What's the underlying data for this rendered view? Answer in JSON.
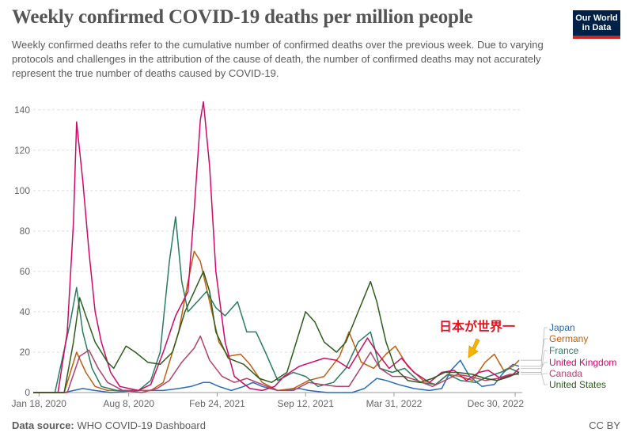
{
  "header": {
    "title": "Weekly confirmed COVID-19 deaths per million people",
    "subtitle": "Weekly confirmed deaths refer to the cumulative number of confirmed deaths over the previous week. Due to varying protocols and challenges in the attribution of the cause of death, the number of confirmed deaths may not accurately represent the true number of deaths caused by COVID-19.",
    "logo_line1": "Our World",
    "logo_line2": "in Data"
  },
  "footer": {
    "source_label": "Data source:",
    "source_value": "WHO COVID-19 Dashboard",
    "license": "CC BY"
  },
  "annotation": {
    "text": "日本が世界一",
    "color": "#e8121d",
    "arrow_color": "#f5b400"
  },
  "chart_data": {
    "type": "line",
    "title": "Weekly confirmed COVID-19 deaths per million people",
    "xlabel": "",
    "ylabel": "",
    "x_axis_type": "date",
    "xlim": [
      "2020-01-05",
      "2023-01-15"
    ],
    "ylim": [
      0,
      145
    ],
    "yticks": [
      0,
      20,
      40,
      60,
      80,
      100,
      120,
      140
    ],
    "xticks": [
      {
        "date": "2020-01-18",
        "label": "Jan 18, 2020"
      },
      {
        "date": "2020-08-08",
        "label": "Aug 8, 2020"
      },
      {
        "date": "2021-02-24",
        "label": "Feb 24, 2021"
      },
      {
        "date": "2021-09-12",
        "label": "Sep 12, 2021"
      },
      {
        "date": "2022-03-31",
        "label": "Mar 31, 2022"
      },
      {
        "date": "2022-12-30",
        "label": "Dec 30, 2022"
      }
    ],
    "grid": "horizontal dashed",
    "legend": "right (line-end labels)",
    "series": [
      {
        "name": "Japan",
        "color": "#286bbb",
        "points": [
          [
            "2020-01-05",
            0
          ],
          [
            "2020-03-15",
            0
          ],
          [
            "2020-04-26",
            2
          ],
          [
            "2020-05-24",
            1
          ],
          [
            "2020-06-28",
            0
          ],
          [
            "2020-08-30",
            1
          ],
          [
            "2020-10-25",
            1
          ],
          [
            "2020-11-29",
            2
          ],
          [
            "2020-12-27",
            3
          ],
          [
            "2021-01-24",
            5
          ],
          [
            "2021-02-07",
            5
          ],
          [
            "2021-02-28",
            3
          ],
          [
            "2021-03-28",
            1
          ],
          [
            "2021-04-25",
            3
          ],
          [
            "2021-05-16",
            5
          ],
          [
            "2021-06-06",
            3
          ],
          [
            "2021-07-11",
            1
          ],
          [
            "2021-08-29",
            2
          ],
          [
            "2021-09-19",
            1
          ],
          [
            "2021-10-31",
            0
          ],
          [
            "2021-12-26",
            0
          ],
          [
            "2022-01-23",
            2
          ],
          [
            "2022-02-20",
            7
          ],
          [
            "2022-03-13",
            6
          ],
          [
            "2022-04-10",
            4
          ],
          [
            "2022-05-15",
            2
          ],
          [
            "2022-06-19",
            1
          ],
          [
            "2022-07-17",
            2
          ],
          [
            "2022-08-07",
            11
          ],
          [
            "2022-08-28",
            16
          ],
          [
            "2022-09-18",
            8
          ],
          [
            "2022-10-16",
            3
          ],
          [
            "2022-11-13",
            4
          ],
          [
            "2022-12-04",
            10
          ],
          [
            "2022-12-25",
            14
          ],
          [
            "2023-01-08",
            13
          ]
        ]
      },
      {
        "name": "Germany",
        "color": "#c15f10",
        "points": [
          [
            "2020-01-05",
            0
          ],
          [
            "2020-03-15",
            0
          ],
          [
            "2020-04-12",
            20
          ],
          [
            "2020-05-03",
            10
          ],
          [
            "2020-05-24",
            3
          ],
          [
            "2020-06-21",
            1
          ],
          [
            "2020-09-27",
            1
          ],
          [
            "2020-10-25",
            5
          ],
          [
            "2020-11-29",
            30
          ],
          [
            "2020-12-20",
            55
          ],
          [
            "2021-01-03",
            70
          ],
          [
            "2021-01-17",
            65
          ],
          [
            "2021-02-07",
            45
          ],
          [
            "2021-02-28",
            25
          ],
          [
            "2021-03-21",
            18
          ],
          [
            "2021-04-18",
            19
          ],
          [
            "2021-05-09",
            14
          ],
          [
            "2021-06-06",
            5
          ],
          [
            "2021-07-11",
            1
          ],
          [
            "2021-08-15",
            2
          ],
          [
            "2021-09-19",
            6
          ],
          [
            "2021-10-24",
            8
          ],
          [
            "2021-11-28",
            18
          ],
          [
            "2021-12-19",
            30
          ],
          [
            "2022-01-16",
            15
          ],
          [
            "2022-02-13",
            12
          ],
          [
            "2022-03-13",
            19
          ],
          [
            "2022-04-03",
            23
          ],
          [
            "2022-05-01",
            13
          ],
          [
            "2022-06-05",
            6
          ],
          [
            "2022-07-03",
            4
          ],
          [
            "2022-07-31",
            9
          ],
          [
            "2022-08-28",
            8
          ],
          [
            "2022-09-25",
            6
          ],
          [
            "2022-10-23",
            15
          ],
          [
            "2022-11-13",
            19
          ],
          [
            "2022-12-04",
            11
          ],
          [
            "2022-12-25",
            13
          ],
          [
            "2023-01-08",
            16
          ]
        ]
      },
      {
        "name": "France",
        "color": "#2a7c62",
        "points": [
          [
            "2020-01-05",
            0
          ],
          [
            "2020-02-23",
            0
          ],
          [
            "2020-03-29",
            35
          ],
          [
            "2020-04-12",
            52
          ],
          [
            "2020-04-26",
            30
          ],
          [
            "2020-05-17",
            12
          ],
          [
            "2020-06-07",
            3
          ],
          [
            "2020-07-12",
            1
          ],
          [
            "2020-08-30",
            1
          ],
          [
            "2020-09-27",
            6
          ],
          [
            "2020-10-18",
            20
          ],
          [
            "2020-11-08",
            65
          ],
          [
            "2020-11-22",
            87
          ],
          [
            "2020-12-06",
            55
          ],
          [
            "2020-12-20",
            40
          ],
          [
            "2021-01-10",
            45
          ],
          [
            "2021-01-31",
            50
          ],
          [
            "2021-02-21",
            42
          ],
          [
            "2021-03-14",
            38
          ],
          [
            "2021-04-11",
            45
          ],
          [
            "2021-05-02",
            30
          ],
          [
            "2021-05-23",
            30
          ],
          [
            "2021-06-13",
            20
          ],
          [
            "2021-07-11",
            6
          ],
          [
            "2021-08-15",
            10
          ],
          [
            "2021-09-12",
            8
          ],
          [
            "2021-10-10",
            3
          ],
          [
            "2021-11-14",
            5
          ],
          [
            "2021-12-12",
            12
          ],
          [
            "2022-01-09",
            25
          ],
          [
            "2022-02-06",
            30
          ],
          [
            "2022-02-27",
            12
          ],
          [
            "2022-03-27",
            10
          ],
          [
            "2022-04-24",
            12
          ],
          [
            "2022-05-29",
            5
          ],
          [
            "2022-07-03",
            4
          ],
          [
            "2022-07-31",
            9
          ],
          [
            "2022-08-28",
            6
          ],
          [
            "2022-10-02",
            5
          ],
          [
            "2022-10-30",
            8
          ],
          [
            "2022-11-27",
            10
          ],
          [
            "2022-12-18",
            12
          ],
          [
            "2023-01-08",
            10
          ]
        ]
      },
      {
        "name": "United Kingdom",
        "color": "#cf0a66",
        "points": [
          [
            "2020-01-05",
            0
          ],
          [
            "2020-03-01",
            0
          ],
          [
            "2020-03-22",
            30
          ],
          [
            "2020-04-05",
            84
          ],
          [
            "2020-04-12",
            134
          ],
          [
            "2020-04-26",
            105
          ],
          [
            "2020-05-10",
            70
          ],
          [
            "2020-05-24",
            40
          ],
          [
            "2020-06-07",
            25
          ],
          [
            "2020-06-28",
            10
          ],
          [
            "2020-07-19",
            3
          ],
          [
            "2020-08-30",
            1
          ],
          [
            "2020-09-27",
            4
          ],
          [
            "2020-10-25",
            20
          ],
          [
            "2020-11-22",
            38
          ],
          [
            "2020-12-20",
            50
          ],
          [
            "2021-01-03",
            90
          ],
          [
            "2021-01-17",
            135
          ],
          [
            "2021-01-24",
            144
          ],
          [
            "2021-02-07",
            112
          ],
          [
            "2021-02-21",
            60
          ],
          [
            "2021-03-14",
            25
          ],
          [
            "2021-04-04",
            8
          ],
          [
            "2021-05-09",
            2
          ],
          [
            "2021-06-06",
            1
          ],
          [
            "2021-07-04",
            3
          ],
          [
            "2021-07-25",
            8
          ],
          [
            "2021-08-29",
            13
          ],
          [
            "2021-09-26",
            15
          ],
          [
            "2021-10-24",
            17
          ],
          [
            "2021-11-21",
            16
          ],
          [
            "2021-12-19",
            12
          ],
          [
            "2022-01-16",
            22
          ],
          [
            "2022-01-30",
            27
          ],
          [
            "2022-02-20",
            20
          ],
          [
            "2022-03-20",
            12
          ],
          [
            "2022-04-17",
            17
          ],
          [
            "2022-05-15",
            10
          ],
          [
            "2022-06-19",
            5
          ],
          [
            "2022-07-17",
            10
          ],
          [
            "2022-08-14",
            11
          ],
          [
            "2022-09-11",
            6
          ],
          [
            "2022-10-09",
            10
          ],
          [
            "2022-10-30",
            11
          ],
          [
            "2022-11-27",
            7
          ],
          [
            "2022-12-25",
            9
          ],
          [
            "2023-01-08",
            12
          ]
        ]
      },
      {
        "name": "Canada",
        "color": "#b5416b",
        "points": [
          [
            "2020-01-05",
            0
          ],
          [
            "2020-03-22",
            0
          ],
          [
            "2020-04-19",
            18
          ],
          [
            "2020-05-10",
            21
          ],
          [
            "2020-05-31",
            12
          ],
          [
            "2020-06-21",
            5
          ],
          [
            "2020-07-26",
            1
          ],
          [
            "2020-09-06",
            0
          ],
          [
            "2020-10-11",
            2
          ],
          [
            "2020-11-08",
            6
          ],
          [
            "2020-12-06",
            15
          ],
          [
            "2021-01-03",
            22
          ],
          [
            "2021-01-17",
            28
          ],
          [
            "2021-02-07",
            16
          ],
          [
            "2021-03-07",
            8
          ],
          [
            "2021-04-04",
            5
          ],
          [
            "2021-05-02",
            7
          ],
          [
            "2021-06-06",
            4
          ],
          [
            "2021-07-11",
            1
          ],
          [
            "2021-08-15",
            1
          ],
          [
            "2021-09-19",
            5
          ],
          [
            "2021-10-17",
            4
          ],
          [
            "2021-11-21",
            3
          ],
          [
            "2021-12-19",
            3
          ],
          [
            "2022-01-23",
            15
          ],
          [
            "2022-02-06",
            20
          ],
          [
            "2022-02-27",
            12
          ],
          [
            "2022-03-27",
            8
          ],
          [
            "2022-04-24",
            8
          ],
          [
            "2022-05-22",
            6
          ],
          [
            "2022-06-26",
            3
          ],
          [
            "2022-07-24",
            6
          ],
          [
            "2022-08-21",
            9
          ],
          [
            "2022-09-18",
            8
          ],
          [
            "2022-10-23",
            6
          ],
          [
            "2022-11-20",
            7
          ],
          [
            "2022-12-18",
            9
          ],
          [
            "2023-01-08",
            9
          ]
        ]
      },
      {
        "name": "United States",
        "color": "#2c5d1d",
        "points": [
          [
            "2020-01-05",
            0
          ],
          [
            "2020-03-15",
            0
          ],
          [
            "2020-04-05",
            25
          ],
          [
            "2020-04-19",
            47
          ],
          [
            "2020-05-03",
            38
          ],
          [
            "2020-05-24",
            25
          ],
          [
            "2020-06-21",
            15
          ],
          [
            "2020-07-05",
            12
          ],
          [
            "2020-08-02",
            23
          ],
          [
            "2020-08-23",
            20
          ],
          [
            "2020-09-20",
            15
          ],
          [
            "2020-10-18",
            14
          ],
          [
            "2020-11-15",
            20
          ],
          [
            "2020-12-13",
            40
          ],
          [
            "2021-01-03",
            50
          ],
          [
            "2021-01-24",
            60
          ],
          [
            "2021-02-07",
            50
          ],
          [
            "2021-02-21",
            30
          ],
          [
            "2021-03-21",
            17
          ],
          [
            "2021-04-25",
            14
          ],
          [
            "2021-05-30",
            7
          ],
          [
            "2021-06-27",
            5
          ],
          [
            "2021-08-01",
            10
          ],
          [
            "2021-08-29",
            30
          ],
          [
            "2021-09-12",
            40
          ],
          [
            "2021-10-03",
            35
          ],
          [
            "2021-10-24",
            25
          ],
          [
            "2021-11-21",
            20
          ],
          [
            "2021-12-12",
            25
          ],
          [
            "2022-01-09",
            40
          ],
          [
            "2022-02-06",
            55
          ],
          [
            "2022-02-20",
            45
          ],
          [
            "2022-03-13",
            25
          ],
          [
            "2022-04-03",
            12
          ],
          [
            "2022-05-01",
            6
          ],
          [
            "2022-05-29",
            5
          ],
          [
            "2022-06-26",
            7
          ],
          [
            "2022-07-24",
            10
          ],
          [
            "2022-08-21",
            10
          ],
          [
            "2022-09-25",
            9
          ],
          [
            "2022-10-23",
            7
          ],
          [
            "2022-11-20",
            6
          ],
          [
            "2022-12-18",
            8
          ],
          [
            "2023-01-08",
            10
          ]
        ]
      }
    ]
  }
}
